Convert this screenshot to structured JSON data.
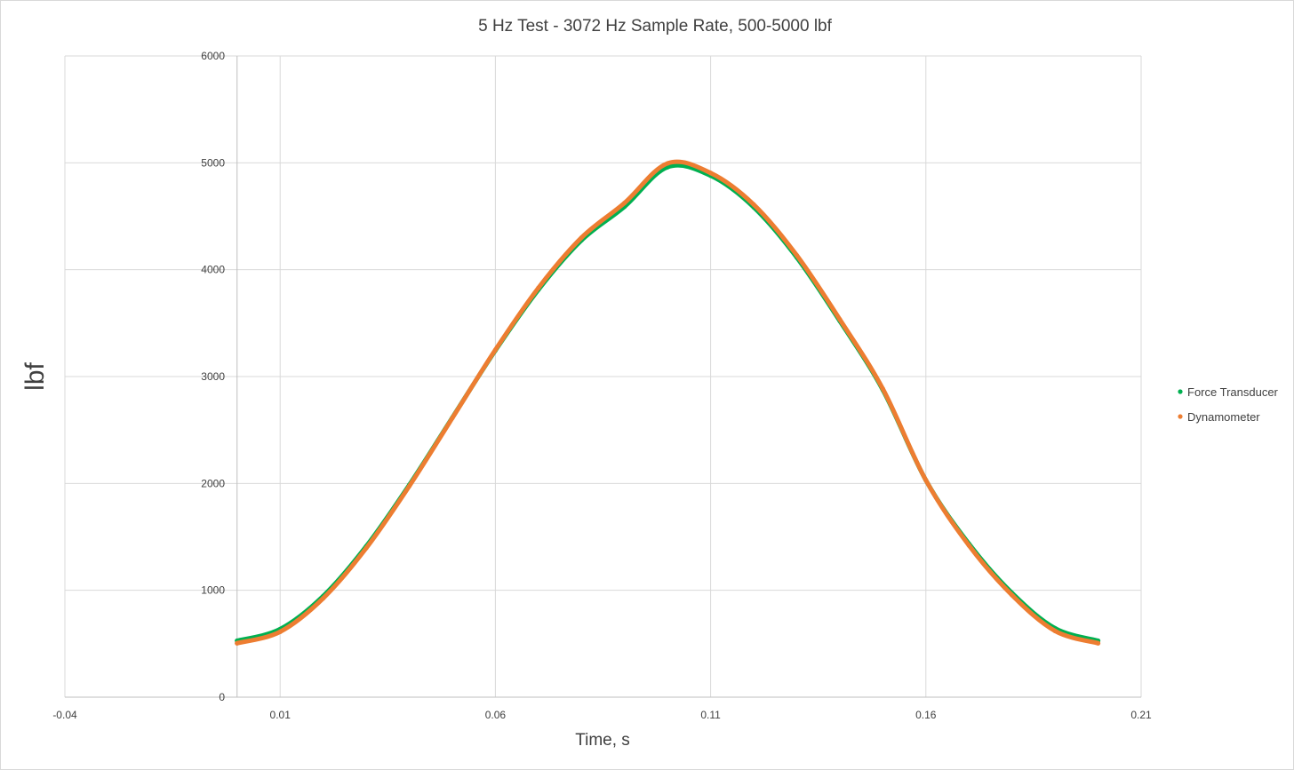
{
  "chart_data": {
    "type": "scatter",
    "title": "5 Hz Test - 3072 Hz Sample Rate, 500-5000 lbf",
    "xlabel": "Time, s",
    "ylabel": "lbf",
    "xlim": [
      -0.04,
      0.21
    ],
    "ylim": [
      0,
      6000
    ],
    "x_ticks": [
      "-0.04",
      "0.01",
      "0.06",
      "0.11",
      "0.16",
      "0.21"
    ],
    "y_ticks": [
      "0",
      "1000",
      "2000",
      "3000",
      "4000",
      "5000",
      "6000"
    ],
    "grid": true,
    "legend_position": "right",
    "series": [
      {
        "name": "Force Transducer",
        "color": "#00b050",
        "x": [
          0.0,
          0.01,
          0.02,
          0.03,
          0.04,
          0.05,
          0.06,
          0.07,
          0.08,
          0.09,
          0.1,
          0.11,
          0.12,
          0.13,
          0.14,
          0.15,
          0.16,
          0.17,
          0.18,
          0.19,
          0.2
        ],
        "y": [
          528,
          637,
          946,
          1412,
          1986,
          2616,
          3244,
          3813,
          4275,
          4590,
          4960,
          4880,
          4585,
          4115,
          3520,
          2875,
          2030,
          1435,
          975,
          645,
          528
        ]
      },
      {
        "name": "Dynamometer",
        "color": "#ed7d31",
        "x": [
          0.0,
          0.01,
          0.02,
          0.03,
          0.04,
          0.05,
          0.06,
          0.07,
          0.08,
          0.09,
          0.1,
          0.11,
          0.12,
          0.13,
          0.14,
          0.15,
          0.16,
          0.17,
          0.18,
          0.19,
          0.2
        ],
        "y": [
          505,
          612,
          925,
          1395,
          1975,
          2612,
          3250,
          3830,
          4300,
          4625,
          4995,
          4905,
          4610,
          4135,
          3535,
          2885,
          2030,
          1420,
          955,
          620,
          505
        ]
      }
    ]
  }
}
